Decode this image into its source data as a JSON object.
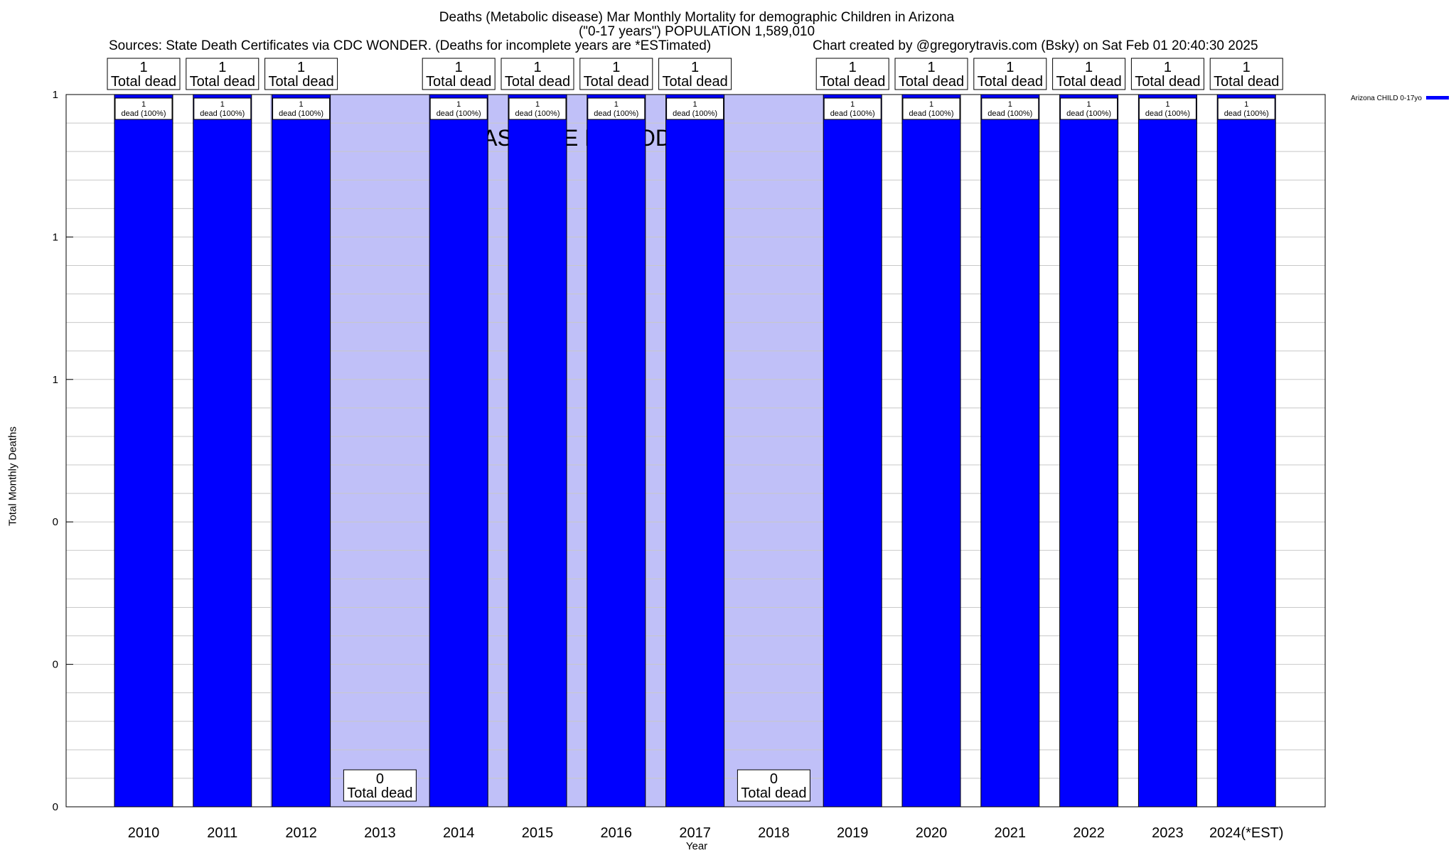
{
  "chart_data": {
    "type": "bar",
    "title": "Deaths (Metabolic disease) Mar Monthly Mortality for demographic Children in Arizona",
    "subtitle": "(\"0-17 years\") POPULATION 1,589,010",
    "sources": "Sources: State Death Certificates via CDC WONDER. (Deaths for incomplete years are *ESTimated)",
    "credit": "Chart created by @gregorytravis.com (Bsky) on Sat Feb 01 20:40:30 2025",
    "xlabel": "Year",
    "ylabel": "Total Monthly Deaths",
    "categories": [
      "2010",
      "2011",
      "2012",
      "2013",
      "2014",
      "2015",
      "2016",
      "2017",
      "2018",
      "2019",
      "2020",
      "2021",
      "2022",
      "2023",
      "2024(*EST)"
    ],
    "series": [
      {
        "name": "Arizona CHILD 0-17yo",
        "values": [
          1,
          1,
          1,
          0,
          1,
          1,
          1,
          1,
          0,
          1,
          1,
          1,
          1,
          1,
          1
        ]
      }
    ],
    "total_labels": [
      "1",
      "1",
      "1",
      "0",
      "1",
      "1",
      "1",
      "1",
      "0",
      "1",
      "1",
      "1",
      "1",
      "1",
      "1"
    ],
    "total_suffix": "Total dead",
    "inner_labels": [
      "1",
      "1",
      "1",
      "",
      "1",
      "1",
      "1",
      "1",
      "",
      "1",
      "1",
      "1",
      "1",
      "1",
      "1"
    ],
    "inner_suffix": "dead (100%)",
    "ylim": [
      0,
      1
    ],
    "ytick_labels": [
      "0",
      "0",
      "0",
      "1",
      "1",
      "1"
    ],
    "baseline_period": {
      "label": "BASELINE PERIOD",
      "start": "2012",
      "end": "2019"
    },
    "grid": true,
    "legend_position": "top-right",
    "colors": {
      "bar": "#0000ff",
      "baseline": "#c0c0f8",
      "grid": "#c8c8c8"
    }
  }
}
